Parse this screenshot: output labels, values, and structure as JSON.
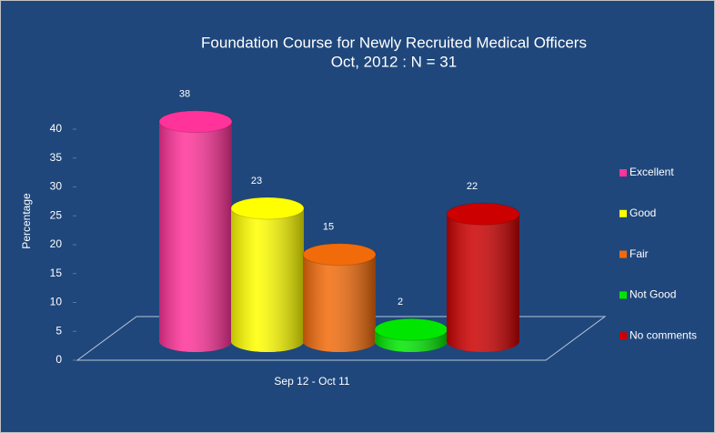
{
  "chart_data": {
    "type": "bar3d",
    "title": "Foundation Course for Newly Recruited Medical Officers",
    "subtitle": "Oct, 2012 : N = 31",
    "y_label": "Percentage",
    "categories": [
      "Sep 12 - Oct 11"
    ],
    "series": [
      {
        "name": "Excellent",
        "color": "#ff3399",
        "values": [
          38
        ]
      },
      {
        "name": "Good",
        "color": "#ffff00",
        "values": [
          23
        ]
      },
      {
        "name": "Fair",
        "color": "#f26b0a",
        "values": [
          15
        ]
      },
      {
        "name": "Not Good",
        "color": "#00e600",
        "values": [
          2
        ]
      },
      {
        "name": "No comments",
        "color": "#cc0000",
        "values": [
          22
        ]
      }
    ],
    "ylim": [
      0,
      40
    ],
    "yticks": [
      0,
      5,
      10,
      15,
      20,
      25,
      30,
      35,
      40
    ],
    "legend": "right",
    "grid": false
  }
}
